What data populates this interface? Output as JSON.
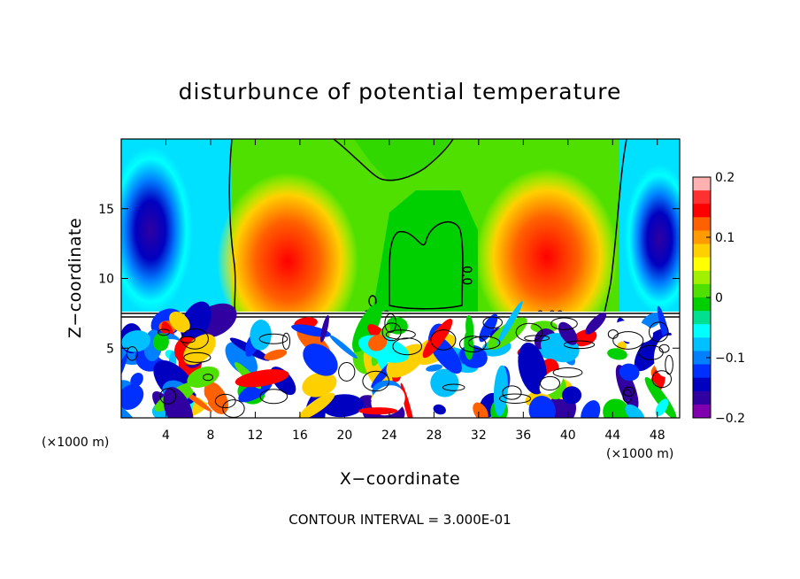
{
  "chart_data": {
    "type": "heatmap",
    "title": "disturbunce of potential temperature",
    "xlabel": "X−coordinate",
    "ylabel": "Z−coordinate",
    "x_unit": "(×1000 m)",
    "z_unit": "(×1000 m)",
    "xlim": [
      0,
      50
    ],
    "ylim": [
      0,
      20
    ],
    "x_ticks": [
      4,
      8,
      12,
      16,
      20,
      24,
      28,
      32,
      36,
      40,
      44,
      48
    ],
    "y_ticks": [
      5,
      10,
      15
    ],
    "colorbar": {
      "min": -0.2,
      "max": 0.2,
      "ticks": [
        "0.2",
        "0.1",
        "0",
        "−0.1",
        "−0.2"
      ],
      "colors": [
        "#ffb0b0",
        "#ff3030",
        "#ff0000",
        "#ff6000",
        "#ff9a00",
        "#ffd000",
        "#ffff00",
        "#a0f000",
        "#50e000",
        "#00d000",
        "#00e090",
        "#00ffff",
        "#00c0ff",
        "#0080ff",
        "#0030ff",
        "#0000c0",
        "#3000a0",
        "#8000b0"
      ]
    },
    "contour_interval": "CONTOUR INTERVAL = 3.000E-01",
    "contour_labels": [
      "0.0",
      "0.00",
      "0.00"
    ],
    "grid": false
  }
}
